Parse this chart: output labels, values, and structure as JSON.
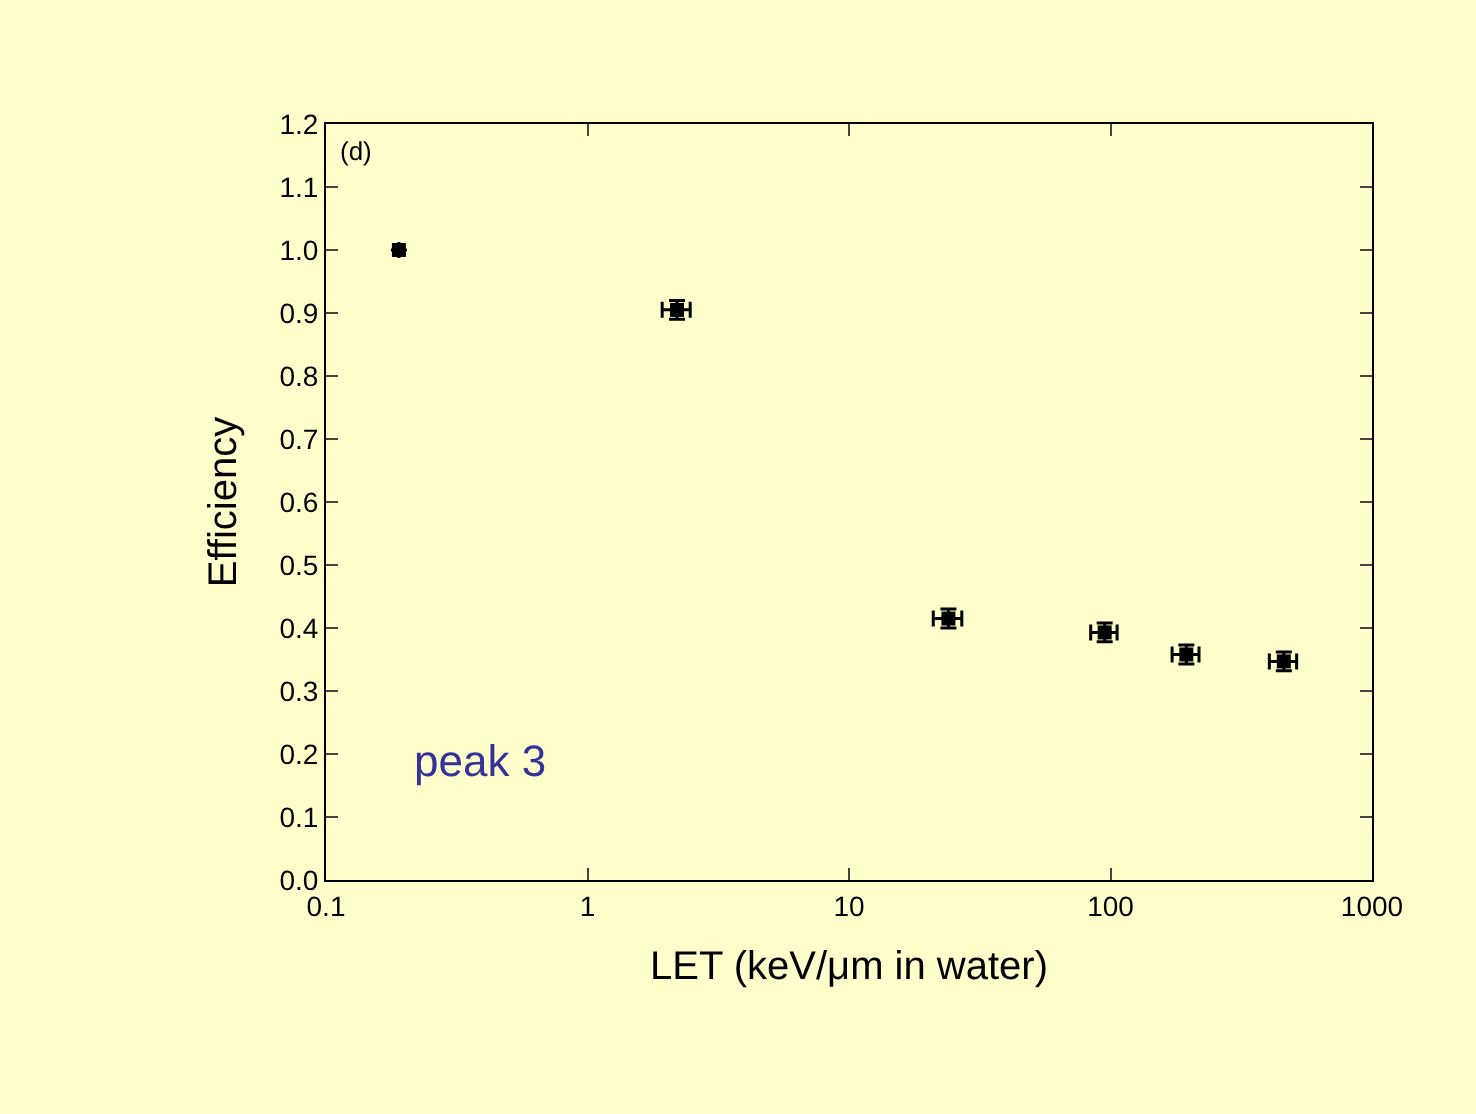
{
  "chart_data": {
    "type": "scatter",
    "xlabel": "LET (keV/μm in water)",
    "ylabel": "Efficiency",
    "log": "x",
    "xlim": [
      0.1,
      1000
    ],
    "xticks": [
      0.1,
      1,
      10,
      100,
      1000
    ],
    "ylim": [
      0.0,
      1.2
    ],
    "yticks": [
      {
        "value": 0.0,
        "label": "0.0"
      },
      0.1,
      0.2,
      0.3,
      0.4,
      0.5,
      0.6,
      0.7,
      0.8,
      0.9,
      {
        "value": 1.0,
        "label": "1.0"
      },
      1.1,
      1.2
    ],
    "grid": false,
    "marker": "square",
    "annotations": [
      "(d)",
      "peak 3"
    ],
    "series": [
      {
        "color": "#000000",
        "x": [
          0.19,
          2.2,
          24,
          95,
          195,
          460
        ],
        "values": [
          1.0,
          0.905,
          0.415,
          0.393,
          0.358,
          0.347
        ],
        "errors": [
          null,
          0.015,
          0.015,
          0.015,
          0.015,
          0.015
        ],
        "xerrors": [
          null,
          0.27,
          3,
          11,
          23,
          55
        ]
      }
    ]
  }
}
